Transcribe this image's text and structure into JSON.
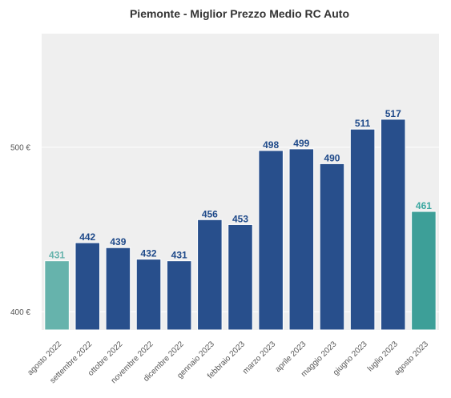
{
  "chart_data": {
    "type": "bar",
    "title": "Piemonte - Miglior Prezzo Medio RC Auto",
    "xlabel": "",
    "ylabel": "",
    "categories": [
      "agosto 2022",
      "settembre 2022",
      "ottobre 2022",
      "novembre 2022",
      "dicembre 2022",
      "gennaio 2023",
      "febbraio 2023",
      "marzo 2023",
      "aprile 2023",
      "maggio 2023",
      "giugno 2023",
      "luglio 2023",
      "agosto 2023"
    ],
    "values": [
      431,
      442,
      439,
      432,
      431,
      456,
      453,
      498,
      499,
      490,
      511,
      517,
      461
    ],
    "value_labels": [
      "431",
      "442",
      "439",
      "432",
      "431",
      "456",
      "453",
      "498",
      "499",
      "490",
      "511",
      "517",
      "461"
    ],
    "bar_colors": [
      "#66b3ac",
      "#284f8c",
      "#284f8c",
      "#284f8c",
      "#284f8c",
      "#284f8c",
      "#284f8c",
      "#284f8c",
      "#284f8c",
      "#284f8c",
      "#284f8c",
      "#284f8c",
      "#3d9f98"
    ],
    "label_colors": [
      "#66b3ac",
      "#1f4a8a",
      "#1f4a8a",
      "#1f4a8a",
      "#1f4a8a",
      "#1f4a8a",
      "#1f4a8a",
      "#1f4a8a",
      "#1f4a8a",
      "#1f4a8a",
      "#1f4a8a",
      "#1f4a8a",
      "#3aa7a0"
    ],
    "y_ticks": [
      400,
      500
    ],
    "y_tick_labels": [
      "400 €",
      "500 €"
    ],
    "ylim": [
      389,
      569
    ],
    "grid": true,
    "plot_background": "#efefef",
    "grid_color": "#ffffff"
  }
}
